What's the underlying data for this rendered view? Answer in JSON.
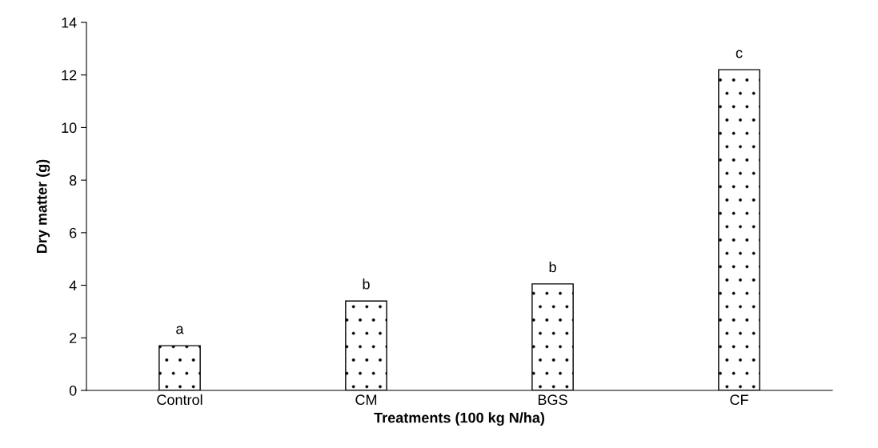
{
  "chart_data": {
    "type": "bar",
    "xlabel": "Treatments (100 kg N/ha)",
    "ylabel": "Dry matter (g)",
    "categories": [
      "Control",
      "CM",
      "BGS",
      "CF"
    ],
    "values": [
      1.7,
      3.4,
      4.05,
      12.2
    ],
    "color": "#000000",
    "ylim": [
      0,
      14
    ],
    "yticks": [
      0,
      2,
      4,
      6,
      8,
      10,
      12,
      14
    ],
    "grid": false,
    "annotations": [
      {
        "text": "a",
        "x": "Control",
        "y": 1.7
      },
      {
        "text": "b",
        "x": "CM",
        "y": 3.4
      },
      {
        "text": "b",
        "x": "BGS",
        "y": 4.05
      },
      {
        "text": "c",
        "x": "CF",
        "y": 12.2
      }
    ]
  }
}
